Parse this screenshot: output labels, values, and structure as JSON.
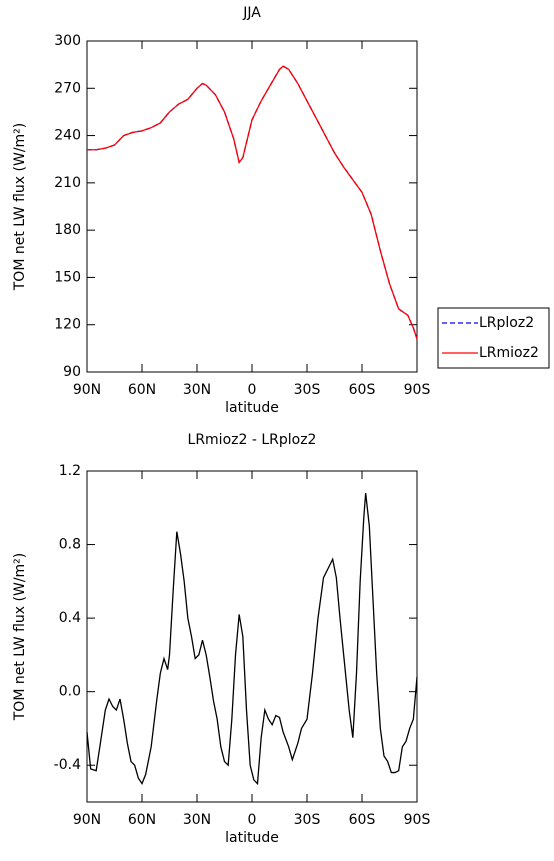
{
  "chart_data": [
    {
      "type": "line",
      "title": "JJA",
      "x_label": "latitude",
      "y_label": "TOM net LW flux (W/m²)",
      "x": [
        90,
        85,
        80,
        75,
        70,
        65,
        60,
        55,
        50,
        45,
        40,
        35,
        30,
        27,
        25,
        20,
        15,
        10,
        7,
        5,
        0,
        -5,
        -10,
        -15,
        -17,
        -20,
        -25,
        -30,
        -35,
        -40,
        -45,
        -50,
        -55,
        -60,
        -65,
        -70,
        -75,
        -80,
        -85,
        -88,
        -90
      ],
      "series": [
        {
          "name": "LRploz2",
          "color": "#0000ff",
          "dash": true,
          "values": [
            231,
            231,
            232,
            234,
            240,
            242,
            243,
            245,
            248,
            255,
            260,
            263,
            270,
            273,
            272,
            266,
            255,
            238,
            223,
            226,
            250,
            262,
            272,
            282,
            284,
            282,
            273,
            262,
            251,
            240,
            229,
            220,
            212,
            204,
            190,
            167,
            146,
            130,
            126,
            118,
            111
          ]
        },
        {
          "name": "LRmioz2",
          "color": "#ff0000",
          "dash": false,
          "values": [
            231,
            231,
            232,
            234,
            240,
            242,
            243,
            245,
            248,
            255,
            260,
            263,
            270,
            273,
            272,
            266,
            255,
            238,
            223,
            226,
            250,
            262,
            272,
            282,
            284,
            282,
            273,
            262,
            251,
            240,
            229,
            220,
            212,
            204,
            190,
            167,
            146,
            130,
            126,
            118,
            111
          ]
        }
      ],
      "xlim": [
        90,
        -90
      ],
      "xticks": [
        {
          "value": 90,
          "label": "90N"
        },
        {
          "value": 60,
          "label": "60N"
        },
        {
          "value": 30,
          "label": "30N"
        },
        0,
        {
          "value": -30,
          "label": "30S"
        },
        {
          "value": -60,
          "label": "60S"
        },
        {
          "value": -90,
          "label": "90S"
        }
      ],
      "ylim": [
        90,
        300
      ],
      "yticks": [
        90,
        120,
        150,
        180,
        210,
        240,
        270,
        300
      ],
      "legend": "right"
    },
    {
      "type": "line",
      "title": "LRmioz2 - LRploz2",
      "x_label": "latitude",
      "y_label": "TOM net LW flux (W/m²)",
      "x": [
        90,
        88,
        85,
        83,
        80,
        78,
        76,
        74,
        72,
        70,
        68,
        66,
        64,
        62,
        60,
        58,
        55,
        52,
        50,
        48,
        46,
        45,
        43,
        41,
        39,
        37,
        35,
        33,
        31,
        29,
        27,
        25,
        23,
        21,
        19,
        17,
        15,
        13,
        11,
        9,
        7,
        5,
        3,
        1,
        -1,
        -3,
        -5,
        -7,
        -9,
        -11,
        -13,
        -15,
        -17,
        -20,
        -22,
        -25,
        -27,
        -30,
        -33,
        -36,
        -39,
        -42,
        -44,
        -46,
        -48,
        -50,
        -53,
        -55,
        -57,
        -59,
        -61,
        -62,
        -64,
        -66,
        -68,
        -70,
        -72,
        -74,
        -76,
        -78,
        -80,
        -82,
        -84,
        -86,
        -88,
        -90
      ],
      "series": [
        {
          "name": "LRmioz2 - LRploz2",
          "color": "#000000",
          "dash": false,
          "values": [
            -0.22,
            -0.42,
            -0.43,
            -0.3,
            -0.1,
            -0.04,
            -0.08,
            -0.1,
            -0.04,
            -0.15,
            -0.28,
            -0.38,
            -0.4,
            -0.47,
            -0.5,
            -0.45,
            -0.3,
            -0.05,
            0.1,
            0.18,
            0.12,
            0.2,
            0.55,
            0.87,
            0.75,
            0.6,
            0.4,
            0.3,
            0.18,
            0.2,
            0.28,
            0.2,
            0.08,
            -0.05,
            -0.15,
            -0.3,
            -0.38,
            -0.4,
            -0.15,
            0.2,
            0.42,
            0.3,
            -0.1,
            -0.4,
            -0.48,
            -0.5,
            -0.25,
            -0.1,
            -0.15,
            -0.18,
            -0.13,
            -0.14,
            -0.22,
            -0.3,
            -0.37,
            -0.28,
            -0.2,
            -0.15,
            0.1,
            0.4,
            0.62,
            0.68,
            0.72,
            0.62,
            0.4,
            0.2,
            -0.1,
            -0.25,
            0.1,
            0.6,
            0.95,
            1.08,
            0.9,
            0.5,
            0.1,
            -0.2,
            -0.35,
            -0.38,
            -0.44,
            -0.44,
            -0.43,
            -0.3,
            -0.27,
            -0.2,
            -0.15,
            0.08
          ]
        }
      ],
      "xlim": [
        90,
        -90
      ],
      "xticks": [
        {
          "value": 90,
          "label": "90N"
        },
        {
          "value": 60,
          "label": "60N"
        },
        {
          "value": 30,
          "label": "30N"
        },
        0,
        {
          "value": -30,
          "label": "30S"
        },
        {
          "value": -60,
          "label": "60S"
        },
        {
          "value": -90,
          "label": "90S"
        }
      ],
      "ylim": [
        -0.6,
        1.2
      ],
      "yticks": [
        {
          "value": -0.4,
          "label": "-0.4"
        },
        {
          "value": 0,
          "label": "0.0"
        },
        {
          "value": 0.4,
          "label": "0.4"
        },
        {
          "value": 0.8,
          "label": "0.8"
        },
        {
          "value": 1.2,
          "label": "1.2"
        }
      ]
    }
  ]
}
